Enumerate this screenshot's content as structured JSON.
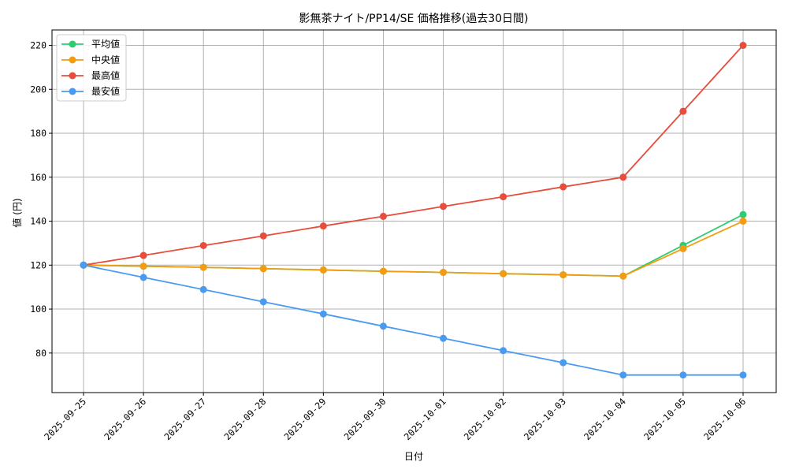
{
  "chart_data": {
    "type": "line",
    "title": "影無茶ナイト/PP14/SE 価格推移(過去30日間)",
    "xlabel": "日付",
    "ylabel": "値 (円)",
    "categories": [
      "2025-09-25",
      "2025-09-26",
      "2025-09-27",
      "2025-09-28",
      "2025-09-29",
      "2025-09-30",
      "2025-10-01",
      "2025-10-02",
      "2025-10-03",
      "2025-10-04",
      "2025-10-05",
      "2025-10-06"
    ],
    "ylim": [
      62,
      227
    ],
    "yticks": [
      80,
      100,
      120,
      140,
      160,
      180,
      200,
      220
    ],
    "grid": true,
    "legend_position": "top-left",
    "series": [
      {
        "name": "平均値",
        "color": "#2ecc71",
        "values": [
          120,
          119.5,
          119.0,
          118.4,
          117.8,
          117.2,
          116.7,
          116.1,
          115.6,
          115.0,
          129,
          143
        ]
      },
      {
        "name": "中央値",
        "color": "#f39c12",
        "values": [
          120,
          119.5,
          119.0,
          118.4,
          117.8,
          117.2,
          116.7,
          116.1,
          115.6,
          115.0,
          127.5,
          140
        ]
      },
      {
        "name": "最高値",
        "color": "#e74c3c",
        "values": [
          120,
          124.4,
          128.9,
          133.3,
          137.8,
          142.2,
          146.7,
          151.1,
          155.6,
          160,
          190,
          220
        ]
      },
      {
        "name": "最安値",
        "color": "#4a9bf0",
        "values": [
          120,
          114.4,
          108.9,
          103.3,
          97.8,
          92.2,
          86.7,
          81.1,
          75.6,
          70,
          70,
          70
        ]
      }
    ]
  }
}
